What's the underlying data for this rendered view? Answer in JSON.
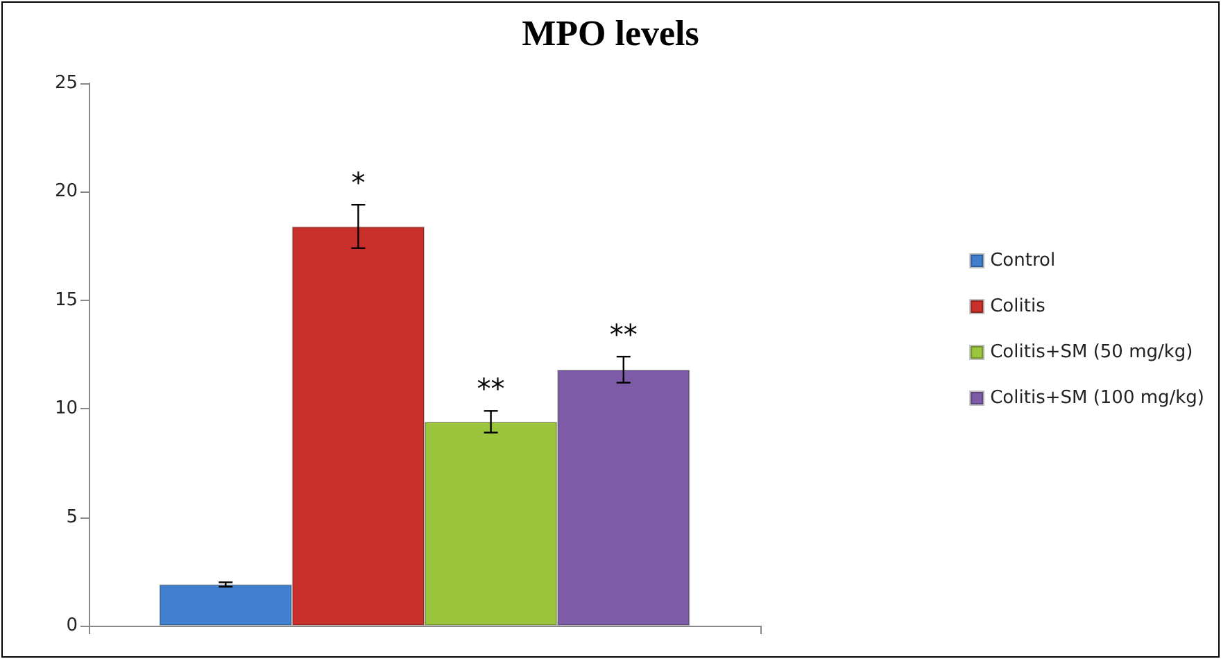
{
  "chart_data": {
    "type": "bar",
    "title": "MPO levels",
    "categories": [
      null
    ],
    "series": [
      {
        "name": "Control",
        "color": "#3f7fce",
        "values": [
          1.9
        ],
        "errors": [
          0.1
        ]
      },
      {
        "name": "Colitis",
        "color": "#c9302c",
        "values": [
          18.4
        ],
        "errors": [
          1.0
        ]
      },
      {
        "name": "Colitis+SM (50 mg/kg)",
        "color": "#9bc53d",
        "values": [
          9.4
        ],
        "errors": [
          0.5
        ]
      },
      {
        "name": "Colitis+SM (100 mg/kg)",
        "color": "#7d5ba6",
        "values": [
          11.8
        ],
        "errors": [
          0.6
        ]
      }
    ],
    "annotations": [
      "*",
      "**",
      "**"
    ],
    "ylim": [
      0,
      25
    ],
    "yticks": [
      0,
      5,
      10,
      15,
      20,
      25
    ],
    "grid": false,
    "legend": "right"
  }
}
